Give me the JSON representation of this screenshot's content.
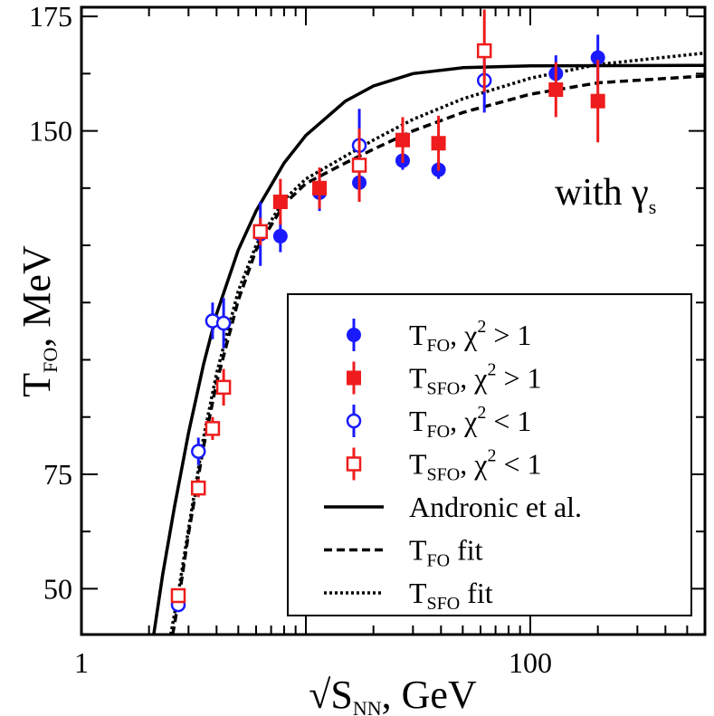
{
  "chart_data": {
    "type": "scatter",
    "xlabel": "√S",
    "xlabel_sub": "NN",
    "xlabel_rest": ", GeV",
    "ylabel": "T",
    "ylabel_sub": "FO",
    "ylabel_rest": ", MeV",
    "x_scale": "log",
    "xlim": [
      1,
      600
    ],
    "ylim": [
      40,
      177
    ],
    "x_ticks": [
      {
        "value": 1,
        "label": "1"
      },
      {
        "value": 100,
        "label": "100"
      }
    ],
    "y_ticks": [
      {
        "value": 50,
        "label": "50"
      },
      {
        "value": 75,
        "label": "75"
      },
      {
        "value": 150,
        "label": "150"
      },
      {
        "value": 175,
        "label": "175"
      }
    ],
    "y_minor_ticks": [
      62.5,
      87.5,
      100,
      112.5,
      125,
      137.5,
      162.5
    ],
    "annotation": {
      "text": "with γ",
      "sub": "s"
    },
    "legend": {
      "placement": "lower-right",
      "entries": [
        {
          "label": "T",
          "sub": "FO",
          "rest": ",  χ",
          "sup": "2",
          "tail": " > 1",
          "series": "tfo_chi_gt1"
        },
        {
          "label": "T",
          "sub": "SFO",
          "rest": ", χ",
          "sup": "2",
          "tail": " > 1",
          "series": "tsfo_chi_gt1"
        },
        {
          "label": "T",
          "sub": "FO",
          "rest": ",  χ",
          "sup": "2",
          "tail": " < 1",
          "series": "tfo_chi_lt1"
        },
        {
          "label": "T",
          "sub": "SFO",
          "rest": ", χ",
          "sup": "2",
          "tail": " < 1",
          "series": "tsfo_chi_lt1"
        },
        {
          "label": "Andronic et al.",
          "sub": "",
          "rest": "",
          "sup": "",
          "tail": "",
          "series": "andronic"
        },
        {
          "label": "T",
          "sub": "FO",
          "rest": " fit",
          "sup": "",
          "tail": "",
          "series": "tfo_fit"
        },
        {
          "label": "T",
          "sub": "SFO",
          "rest": " fit",
          "sup": "",
          "tail": "",
          "series": "tsfo_fit"
        }
      ]
    },
    "series": [
      {
        "id": "tfo_chi_gt1",
        "color": "#1a1aff",
        "marker": "circle-filled",
        "points": [
          {
            "x": 7.7,
            "y": 127,
            "err": 3.5
          },
          {
            "x": 11.5,
            "y": 136.5,
            "err": 4
          },
          {
            "x": 17.3,
            "y": 138.7,
            "err": 4
          },
          {
            "x": 27,
            "y": 143.5,
            "err": 2
          },
          {
            "x": 39,
            "y": 141.5,
            "err": 2
          },
          {
            "x": 130,
            "y": 162.5,
            "err": 4
          },
          {
            "x": 200,
            "y": 166,
            "err": 5
          }
        ]
      },
      {
        "id": "tsfo_chi_gt1",
        "color": "#ee1c1c",
        "marker": "square-filled",
        "points": [
          {
            "x": 7.7,
            "y": 134.5,
            "err": 5
          },
          {
            "x": 11.5,
            "y": 137.5,
            "err": 4.5
          },
          {
            "x": 27,
            "y": 148,
            "err": 5
          },
          {
            "x": 39,
            "y": 147.3,
            "err": 6
          },
          {
            "x": 130,
            "y": 159,
            "err": 6
          },
          {
            "x": 200,
            "y": 156.5,
            "err": 9
          }
        ]
      },
      {
        "id": "tfo_chi_lt1",
        "color": "#1a1aff",
        "marker": "circle-open",
        "points": [
          {
            "x": 2.7,
            "y": 46.5,
            "err": 1
          },
          {
            "x": 3.32,
            "y": 80,
            "err": 3
          },
          {
            "x": 3.84,
            "y": 108.5,
            "err": 4
          },
          {
            "x": 4.3,
            "y": 108,
            "err": 5.5
          },
          {
            "x": 6.27,
            "y": 127.5,
            "err": 7
          },
          {
            "x": 17.3,
            "y": 146.8,
            "err": 8
          },
          {
            "x": 62.4,
            "y": 161,
            "err": 7
          }
        ]
      },
      {
        "id": "tsfo_chi_lt1",
        "color": "#ee1c1c",
        "marker": "square-open",
        "points": [
          {
            "x": 2.7,
            "y": 48.5,
            "err": 1
          },
          {
            "x": 3.32,
            "y": 72,
            "err": 2
          },
          {
            "x": 3.84,
            "y": 85,
            "err": 2.5
          },
          {
            "x": 4.3,
            "y": 94,
            "err": 4
          },
          {
            "x": 6.27,
            "y": 128,
            "err": 3
          },
          {
            "x": 17.3,
            "y": 142.5,
            "err": 8
          },
          {
            "x": 62.4,
            "y": 167.5,
            "err": 9
          }
        ]
      },
      {
        "id": "andronic",
        "color": "#000000",
        "line": "solid",
        "points": [
          {
            "x": 2.1,
            "y": 40
          },
          {
            "x": 2.3,
            "y": 53
          },
          {
            "x": 2.6,
            "y": 68
          },
          {
            "x": 3.0,
            "y": 84
          },
          {
            "x": 3.5,
            "y": 99
          },
          {
            "x": 4.0,
            "y": 110
          },
          {
            "x": 5.0,
            "y": 124
          },
          {
            "x": 6.0,
            "y": 132.5
          },
          {
            "x": 8.0,
            "y": 143
          },
          {
            "x": 10,
            "y": 149
          },
          {
            "x": 15,
            "y": 156.5
          },
          {
            "x": 20,
            "y": 159.8
          },
          {
            "x": 30,
            "y": 162.5
          },
          {
            "x": 50,
            "y": 163.8
          },
          {
            "x": 100,
            "y": 164.2
          },
          {
            "x": 600,
            "y": 164.3
          }
        ]
      },
      {
        "id": "tfo_fit",
        "color": "#000000",
        "line": "dashed",
        "points": [
          {
            "x": 2.55,
            "y": 40
          },
          {
            "x": 2.7,
            "y": 47
          },
          {
            "x": 3.0,
            "y": 62
          },
          {
            "x": 3.5,
            "y": 81
          },
          {
            "x": 4.0,
            "y": 95
          },
          {
            "x": 5.0,
            "y": 113
          },
          {
            "x": 6.0,
            "y": 124
          },
          {
            "x": 8.0,
            "y": 134
          },
          {
            "x": 10,
            "y": 138.5
          },
          {
            "x": 15,
            "y": 143
          },
          {
            "x": 20,
            "y": 146
          },
          {
            "x": 30,
            "y": 150
          },
          {
            "x": 50,
            "y": 154
          },
          {
            "x": 100,
            "y": 158
          },
          {
            "x": 200,
            "y": 160.5
          },
          {
            "x": 600,
            "y": 162
          }
        ]
      },
      {
        "id": "tsfo_fit",
        "color": "#000000",
        "line": "dotted",
        "points": [
          {
            "x": 2.5,
            "y": 40
          },
          {
            "x": 2.7,
            "y": 49
          },
          {
            "x": 3.0,
            "y": 63
          },
          {
            "x": 3.5,
            "y": 83
          },
          {
            "x": 4.0,
            "y": 97
          },
          {
            "x": 5.0,
            "y": 115
          },
          {
            "x": 6.0,
            "y": 125
          },
          {
            "x": 8.0,
            "y": 135
          },
          {
            "x": 10,
            "y": 139.5
          },
          {
            "x": 15,
            "y": 144.5
          },
          {
            "x": 20,
            "y": 148
          },
          {
            "x": 30,
            "y": 152.5
          },
          {
            "x": 50,
            "y": 157
          },
          {
            "x": 100,
            "y": 161.5
          },
          {
            "x": 200,
            "y": 164.5
          },
          {
            "x": 600,
            "y": 167
          }
        ]
      }
    ]
  }
}
